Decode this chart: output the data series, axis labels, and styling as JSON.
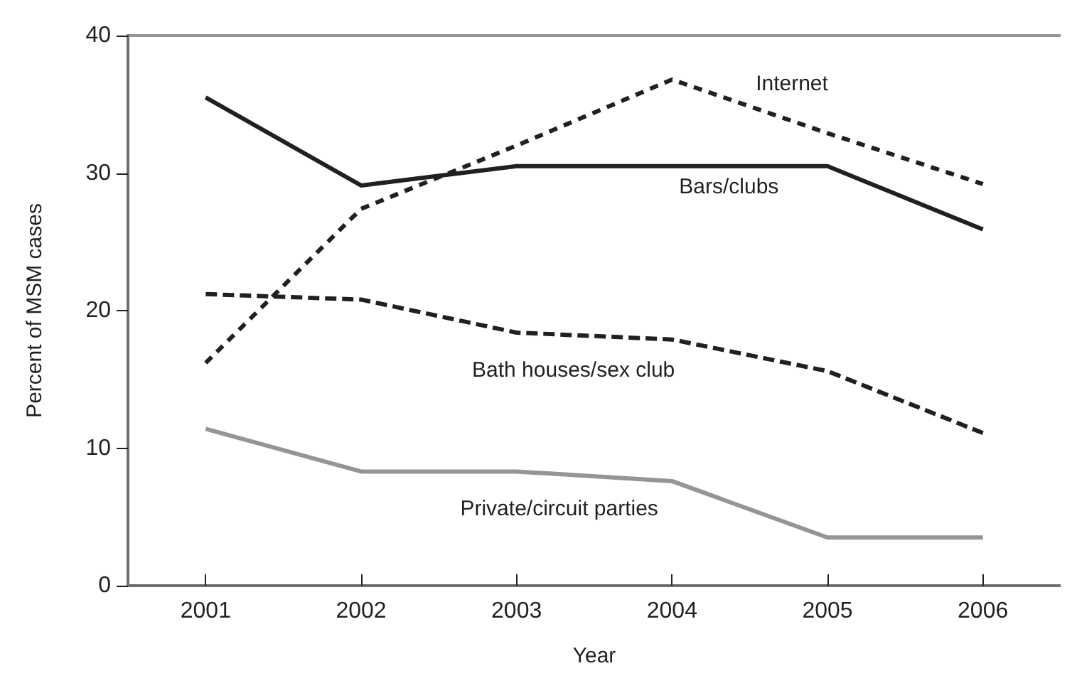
{
  "chart_data": {
    "type": "line",
    "xlabel": "Year",
    "ylabel": "Percent of MSM cases",
    "categories": [
      "2001",
      "2002",
      "2003",
      "2004",
      "2005",
      "2006"
    ],
    "ylim": [
      0,
      40
    ],
    "yticks": [
      0,
      10,
      20,
      30,
      40
    ],
    "grid": false,
    "legend": false,
    "marker": "none",
    "series": [
      {
        "name": "Internet",
        "color": "#231f20",
        "line_style": "dotted",
        "values": [
          16.2,
          27.4,
          32.0,
          36.8,
          32.9,
          29.2
        ]
      },
      {
        "name": "Bars/clubs",
        "color": "#231f20",
        "line_style": "solid",
        "values": [
          35.5,
          29.1,
          30.5,
          30.5,
          30.5,
          25.9
        ]
      },
      {
        "name": "Bath houses/sex club",
        "color": "#231f20",
        "line_style": "dashed",
        "values": [
          21.2,
          20.8,
          18.4,
          17.9,
          15.6,
          11.1
        ]
      },
      {
        "name": "Private/circuit parties",
        "color": "#939598",
        "line_style": "solid",
        "values": [
          11.4,
          8.3,
          8.3,
          7.6,
          3.5,
          3.5
        ]
      }
    ]
  }
}
